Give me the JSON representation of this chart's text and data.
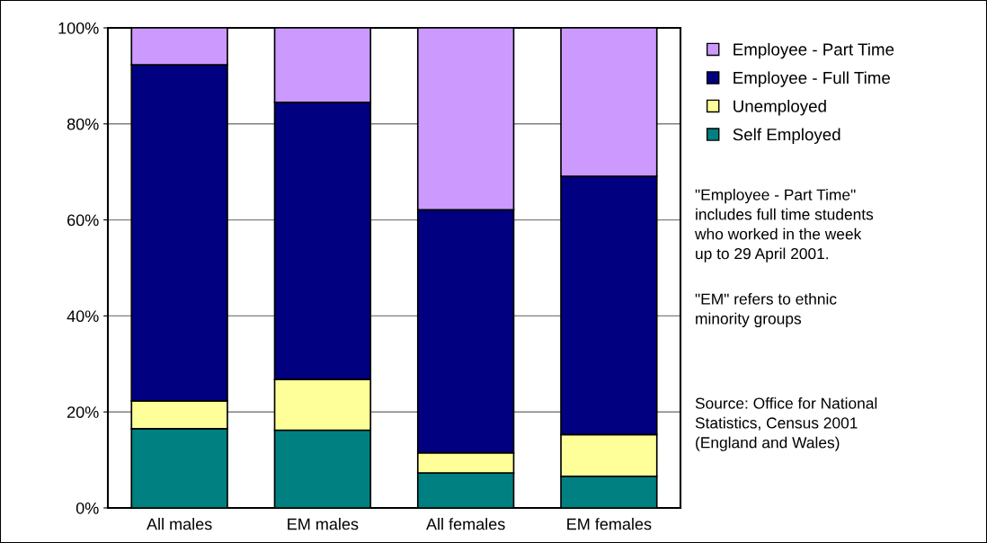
{
  "chart_data": {
    "type": "bar",
    "stacked": true,
    "categories": [
      "All males",
      "EM males",
      "All females",
      "EM females"
    ],
    "series": [
      {
        "name": "Self Employed",
        "color": "#008080",
        "values": [
          16.5,
          16.2,
          7.3,
          6.6
        ]
      },
      {
        "name": "Unemployed",
        "color": "#ffff99",
        "values": [
          5.8,
          10.6,
          4.2,
          8.7
        ]
      },
      {
        "name": "Employee - Full Time",
        "color": "#000080",
        "values": [
          70.0,
          57.7,
          50.6,
          53.8
        ]
      },
      {
        "name": "Employee - Part Time",
        "color": "#cc99ff",
        "values": [
          7.7,
          15.5,
          37.9,
          30.9
        ]
      }
    ],
    "ylim": [
      0,
      100
    ],
    "yticks": [
      {
        "value": 0,
        "label": "0%"
      },
      {
        "value": 20,
        "label": "20%"
      },
      {
        "value": 40,
        "label": "40%"
      },
      {
        "value": 60,
        "label": "60%"
      },
      {
        "value": 80,
        "label": "80%"
      },
      {
        "value": 100,
        "label": "100%"
      }
    ],
    "grid": "y",
    "legend": "top right",
    "annotations": [
      "\"Employee - Part Time\"\nincludes full time students\nwho worked in the week\nup to 29 April 2001.",
      "\"EM\" refers to ethnic\nminority groups",
      "Source: Office for National\nStatistics, Census 2001\n(England and Wales)"
    ]
  }
}
